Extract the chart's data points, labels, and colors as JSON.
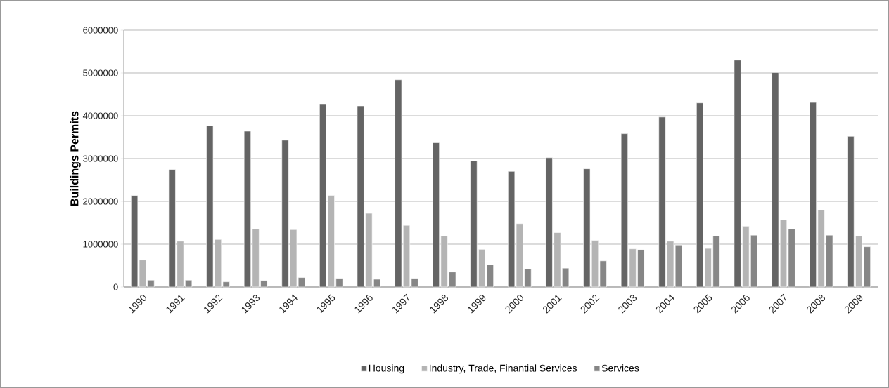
{
  "chart_data": {
    "type": "bar",
    "ylabel": "Buildings Permits",
    "categories": [
      "1990",
      "1991",
      "1992",
      "1993",
      "1994",
      "1995",
      "1996",
      "1997",
      "1998",
      "1999",
      "2000",
      "2001",
      "2002",
      "2003",
      "2004",
      "2005",
      "2006",
      "2007",
      "2008",
      "2009"
    ],
    "series": [
      {
        "name": "Housing",
        "color": "#646464",
        "values": [
          2135000,
          2740000,
          3770000,
          3640000,
          3430000,
          4280000,
          4230000,
          4840000,
          3370000,
          2950000,
          2700000,
          3020000,
          2760000,
          3580000,
          3970000,
          4300000,
          5300000,
          5010000,
          4310000,
          3520000
        ]
      },
      {
        "name": "Industry, Trade, Finantial Services",
        "color": "#b4b4b4",
        "values": [
          630000,
          1070000,
          1110000,
          1360000,
          1340000,
          2140000,
          1720000,
          1440000,
          1190000,
          880000,
          1480000,
          1270000,
          1090000,
          890000,
          1070000,
          900000,
          1420000,
          1570000,
          1800000,
          1190000
        ]
      },
      {
        "name": "Services",
        "color": "#868686",
        "values": [
          160000,
          160000,
          120000,
          150000,
          220000,
          200000,
          180000,
          200000,
          350000,
          520000,
          420000,
          440000,
          610000,
          870000,
          980000,
          1190000,
          1210000,
          1360000,
          1210000,
          940000
        ]
      }
    ],
    "ylim": [
      0,
      6000000
    ],
    "yticks": [
      0,
      1000000,
      2000000,
      3000000,
      4000000,
      5000000,
      6000000
    ],
    "grid": "y",
    "legend": "bottom"
  }
}
